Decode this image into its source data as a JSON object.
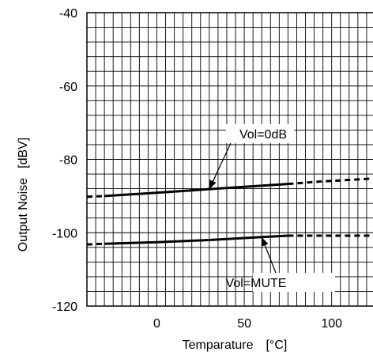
{
  "chart_data": {
    "type": "line",
    "title": "",
    "xlabel": "Temparature",
    "xunit": "[°C]",
    "ylabel": "Output Noise",
    "yunit": "[dBV]",
    "xlim": [
      -40,
      125
    ],
    "ylim": [
      -120,
      -40
    ],
    "x_ticks": [
      0,
      50,
      100
    ],
    "y_ticks": [
      -40,
      -60,
      -80,
      -100,
      -120
    ],
    "grid": true,
    "series": [
      {
        "name": "Vol=0dB",
        "solid": {
          "x": [
            -30,
            -10,
            10,
            30,
            50,
            75
          ],
          "y": [
            -90,
            -89.4,
            -88.8,
            -88.1,
            -87.5,
            -86.7
          ]
        },
        "dashed_left": {
          "x": [
            -40,
            -30
          ],
          "y": [
            -90.2,
            -90
          ]
        },
        "dashed_right": {
          "x": [
            75,
            95,
            110,
            125
          ],
          "y": [
            -86.7,
            -86.0,
            -85.6,
            -85.2
          ]
        }
      },
      {
        "name": "Vol=MUTE",
        "solid": {
          "x": [
            -30,
            0,
            30,
            60,
            75
          ],
          "y": [
            -103,
            -102.6,
            -102,
            -101.2,
            -100.8
          ]
        },
        "dashed_left": {
          "x": [
            -40,
            -30
          ],
          "y": [
            -103.2,
            -103
          ]
        },
        "dashed_right": {
          "x": [
            75,
            100,
            125
          ],
          "y": [
            -100.8,
            -100.8,
            -100.8
          ]
        }
      }
    ],
    "annotations": [
      {
        "text": "Vol=0dB",
        "x": 30,
        "y": -88.1
      },
      {
        "text": "Vol=MUTE",
        "x": 60,
        "y": -101.2
      }
    ]
  }
}
